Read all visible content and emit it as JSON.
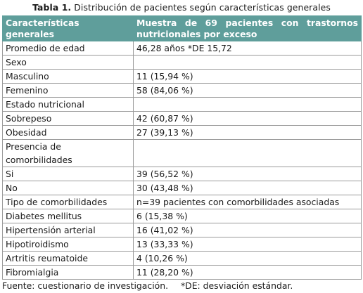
{
  "caption": {
    "label": "Tabla 1.",
    "text": "Distribución  de pacientes según características generales"
  },
  "header": {
    "col1": "Características generales",
    "col2": "Muestra de 69 pacientes con trastornos nutricionales por exceso"
  },
  "rows": [
    {
      "label": "Promedio de edad",
      "value": "46,28 años *DE 15,72"
    },
    {
      "label": "Sexo",
      "value": ""
    },
    {
      "label": "Masculino",
      "value": "11 (15,94 %)"
    },
    {
      "label": "Femenino",
      "value": "58 (84,06 %)"
    },
    {
      "label": "Estado nutricional",
      "value": ""
    },
    {
      "label": "Sobrepeso",
      "value": "42 (60,87 %)"
    },
    {
      "label": "Obesidad",
      "value": "27 (39,13 %)"
    },
    {
      "label": "Presencia de comorbilidades",
      "value": ""
    },
    {
      "label": "Si",
      "value": "39 (56,52 %)"
    },
    {
      "label": "No",
      "value": "30 (43,48 %)"
    },
    {
      "label": "Tipo de comorbilidades",
      "value": "n=39 pacientes con comorbilidades asociadas"
    },
    {
      "label": "Diabetes mellitus",
      "value": "6 (15,38 %)"
    },
    {
      "label": "Hipertensión arterial",
      "value": "16 (41,02 %)"
    },
    {
      "label": "Hipotiroidismo",
      "value": "13 (33,33 %)"
    },
    {
      "label": "Artritis reumatoide",
      "value": "4 (10,26 %)"
    },
    {
      "label": "Fibromialgia",
      "value": "11 (28,20 %)"
    }
  ],
  "footnote": {
    "source": "Fuente: cuestionario de investigación.",
    "abbrev": "*DE: desviación estándar."
  },
  "colors": {
    "header_bg": "#5f9e9b",
    "header_text": "#ffffff",
    "grid": "#9a9a9a"
  }
}
